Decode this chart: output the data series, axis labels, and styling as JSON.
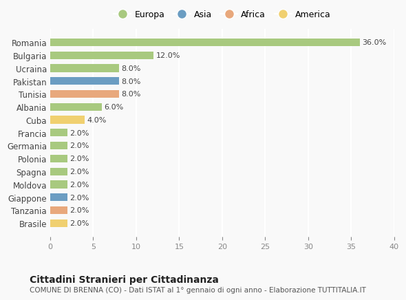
{
  "countries": [
    "Romania",
    "Bulgaria",
    "Ucraina",
    "Pakistan",
    "Tunisia",
    "Albania",
    "Cuba",
    "Francia",
    "Germania",
    "Polonia",
    "Spagna",
    "Moldova",
    "Giappone",
    "Tanzania",
    "Brasile"
  ],
  "values": [
    36.0,
    12.0,
    8.0,
    8.0,
    8.0,
    6.0,
    4.0,
    2.0,
    2.0,
    2.0,
    2.0,
    2.0,
    2.0,
    2.0,
    2.0
  ],
  "continents": [
    "Europa",
    "Europa",
    "Europa",
    "Asia",
    "Africa",
    "Europa",
    "America",
    "Europa",
    "Europa",
    "Europa",
    "Europa",
    "Europa",
    "Asia",
    "Africa",
    "America"
  ],
  "continent_colors": {
    "Europa": "#a8c97f",
    "Asia": "#6b9dc2",
    "Africa": "#e8a87c",
    "America": "#f0d070"
  },
  "legend_order": [
    "Europa",
    "Asia",
    "Africa",
    "America"
  ],
  "xlim": [
    0,
    40
  ],
  "xticks": [
    0,
    5,
    10,
    15,
    20,
    25,
    30,
    35,
    40
  ],
  "title": "Cittadini Stranieri per Cittadinanza",
  "subtitle": "COMUNE DI BRENNA (CO) - Dati ISTAT al 1° gennaio di ogni anno - Elaborazione TUTTITALIA.IT",
  "bg_color": "#f9f9f9",
  "grid_color": "#ffffff",
  "bar_height": 0.6
}
